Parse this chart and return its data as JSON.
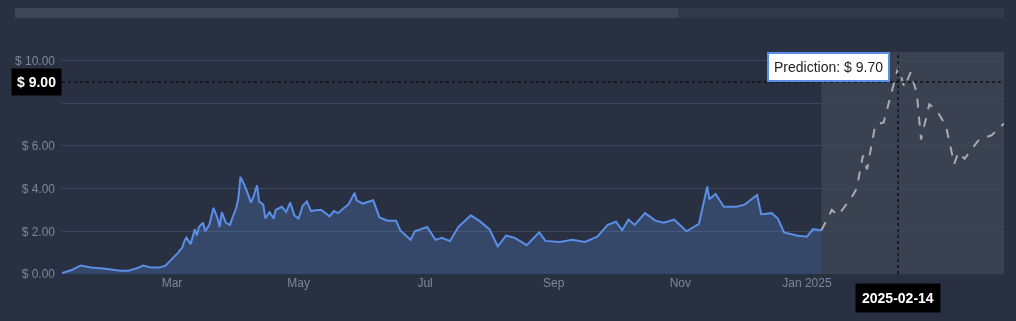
{
  "chart_data": {
    "type": "area",
    "x": [
      "2024-01-08",
      "2024-01-13",
      "2024-01-17",
      "2024-01-22",
      "2024-01-29",
      "2024-02-05",
      "2024-02-09",
      "2024-02-14",
      "2024-02-16",
      "2024-02-20",
      "2024-02-24",
      "2024-02-27",
      "2024-03-02",
      "2024-03-04",
      "2024-03-06",
      "2024-03-07",
      "2024-03-08",
      "2024-03-10",
      "2024-03-12",
      "2024-03-13",
      "2024-03-14",
      "2024-03-16",
      "2024-03-17",
      "2024-03-19",
      "2024-03-21",
      "2024-03-23",
      "2024-03-24",
      "2024-03-25",
      "2024-03-27",
      "2024-03-29",
      "2024-03-30",
      "2024-04-01",
      "2024-04-02",
      "2024-04-03",
      "2024-04-05",
      "2024-04-07",
      "2024-04-08",
      "2024-04-09",
      "2024-04-11",
      "2024-04-12",
      "2024-04-14",
      "2024-04-15",
      "2024-04-17",
      "2024-04-19",
      "2024-04-20",
      "2024-04-23",
      "2024-04-25",
      "2024-04-27",
      "2024-04-29",
      "2024-05-01",
      "2024-05-03",
      "2024-05-05",
      "2024-05-07",
      "2024-05-10",
      "2024-05-12",
      "2024-05-16",
      "2024-05-18",
      "2024-05-20",
      "2024-05-23",
      "2024-05-25",
      "2024-05-28",
      "2024-05-29",
      "2024-06-01",
      "2024-06-06",
      "2024-06-09",
      "2024-06-13",
      "2024-06-17",
      "2024-06-19",
      "2024-06-24",
      "2024-06-26",
      "2024-07-02",
      "2024-07-06",
      "2024-07-09",
      "2024-07-13",
      "2024-07-17",
      "2024-07-23",
      "2024-07-27",
      "2024-08-01",
      "2024-08-05",
      "2024-08-09",
      "2024-08-13",
      "2024-08-19",
      "2024-08-25",
      "2024-08-28",
      "2024-09-04",
      "2024-09-10",
      "2024-09-16",
      "2024-09-22",
      "2024-09-27",
      "2024-10-01",
      "2024-10-04",
      "2024-10-07",
      "2024-10-10",
      "2024-10-15",
      "2024-10-20",
      "2024-10-24",
      "2024-10-29",
      "2024-11-04",
      "2024-11-10",
      "2024-11-14",
      "2024-11-15",
      "2024-11-18",
      "2024-11-22",
      "2024-11-28",
      "2024-12-02",
      "2024-12-08",
      "2024-12-10",
      "2024-12-15",
      "2024-12-18",
      "2024-12-21",
      "2024-12-27",
      "2025-01-01",
      "2025-01-04",
      "2025-01-08"
    ],
    "series": [
      {
        "type": "area",
        "color": "#5b8ee6",
        "values": [
          0.05,
          0.2,
          0.4,
          0.3,
          0.25,
          0.15,
          0.15,
          0.3,
          0.4,
          0.3,
          0.3,
          0.4,
          0.8,
          1.0,
          1.25,
          1.55,
          1.7,
          1.4,
          2.1,
          1.8,
          2.2,
          2.4,
          2.0,
          2.3,
          3.1,
          2.6,
          2.2,
          2.9,
          2.4,
          2.3,
          2.6,
          3.1,
          3.55,
          4.55,
          4.15,
          3.65,
          3.35,
          3.55,
          4.15,
          3.4,
          3.25,
          2.6,
          2.9,
          2.6,
          3.0,
          3.15,
          2.9,
          3.35,
          2.75,
          2.6,
          3.2,
          3.4,
          2.95,
          3.0,
          3.0,
          2.7,
          2.95,
          2.85,
          3.1,
          3.25,
          3.8,
          3.45,
          3.3,
          3.45,
          2.65,
          2.5,
          2.5,
          2.05,
          1.6,
          2.0,
          2.2,
          1.6,
          1.7,
          1.55,
          2.2,
          2.75,
          2.5,
          2.1,
          1.3,
          1.8,
          1.7,
          1.35,
          1.95,
          1.55,
          1.5,
          1.6,
          1.5,
          1.75,
          2.3,
          2.45,
          2.05,
          2.55,
          2.3,
          2.85,
          2.5,
          2.4,
          2.55,
          2.0,
          2.35,
          4.1,
          3.5,
          3.75,
          3.15,
          3.15,
          3.25,
          3.7,
          2.8,
          2.85,
          2.6,
          1.95,
          1.8,
          1.75,
          2.1,
          2.05
        ]
      },
      {
        "type": "line",
        "color": "#a9abae",
        "line_style": "dashed",
        "x": [
          "2025-01-08",
          "2025-01-13",
          "2025-01-16",
          "2025-01-22",
          "2025-01-25",
          "2025-01-28",
          "2025-01-30",
          "2025-02-03",
          "2025-02-07",
          "2025-02-14",
          "2025-02-17",
          "2025-02-20",
          "2025-02-23",
          "2025-02-25",
          "2025-03-01",
          "2025-03-05",
          "2025-03-09",
          "2025-03-13",
          "2025-03-15",
          "2025-03-18",
          "2025-03-25",
          "2025-03-31",
          "2025-04-06"
        ],
        "values": [
          2.05,
          3.0,
          2.75,
          3.5,
          4.0,
          5.55,
          4.9,
          7.0,
          7.1,
          9.7,
          8.75,
          9.45,
          8.45,
          6.3,
          7.95,
          7.6,
          6.95,
          5.15,
          5.7,
          5.4,
          6.3,
          6.5,
          7.05
        ]
      }
    ],
    "xlim": [
      "2024-01-08",
      "2025-04-06"
    ],
    "xticks": [
      {
        "value": "2024-03-01",
        "label": "Mar"
      },
      {
        "value": "2024-05-01",
        "label": "May"
      },
      {
        "value": "2024-07-01",
        "label": "Jul"
      },
      {
        "value": "2024-09-01",
        "label": "Sep"
      },
      {
        "value": "2024-11-01",
        "label": "Nov"
      },
      {
        "value": "2025-01-01",
        "label": "Jan 2025"
      }
    ],
    "ylim": [
      0,
      10.4
    ],
    "yticks": [
      {
        "value": 0,
        "label": "$ 0.00"
      },
      {
        "value": 2,
        "label": "$ 2.00"
      },
      {
        "value": 4,
        "label": "$ 4.00"
      },
      {
        "value": 6,
        "label": "$ 6.00"
      },
      {
        "value": 8,
        "label": null
      },
      {
        "value": 10,
        "label": "$ 10.00"
      }
    ],
    "grid": "y",
    "marker": "none",
    "ref_lines": [
      {
        "axis": "y",
        "value": 9,
        "label": "$ 9.00",
        "line_style": "dotted",
        "color": "#0d1117"
      },
      {
        "axis": "x",
        "value": "2025-02-14",
        "label": "2025-02-14",
        "line_style": "dotted",
        "color": "#0d1117"
      }
    ],
    "bands": [
      {
        "axis": "x",
        "from": "2025-01-08",
        "to": "2025-04-06",
        "color": "#3a4150"
      }
    ],
    "annotations": [
      {
        "text": "Prediction: $ 9.70",
        "x": "2025-02-14",
        "y": 9.7
      }
    ]
  }
}
